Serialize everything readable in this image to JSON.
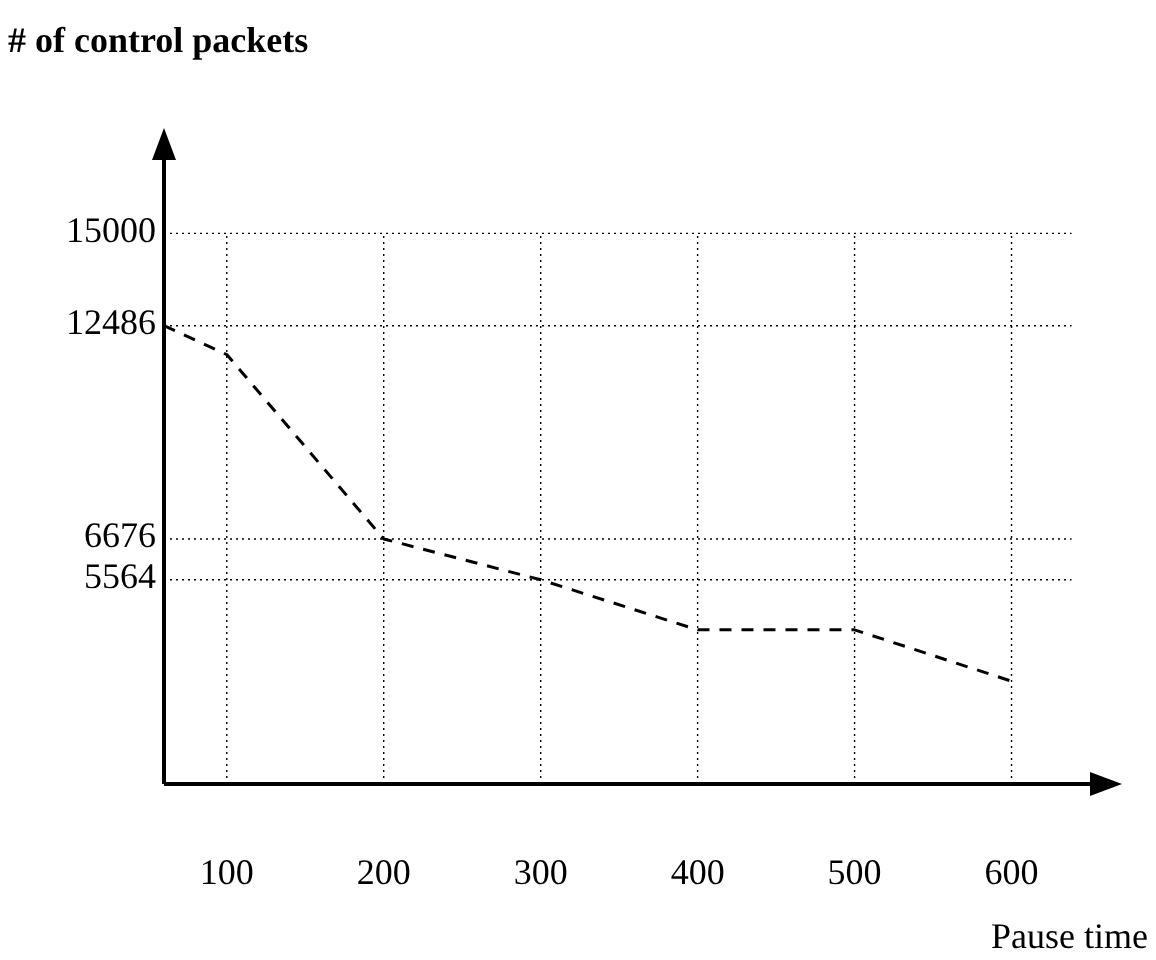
{
  "chart_data": {
    "type": "line",
    "xlabel": "Pause time",
    "ylabel": "# of control packets",
    "x": [
      60,
      100,
      200,
      300,
      400,
      500,
      600
    ],
    "series": [
      {
        "color": "#000000",
        "values": [
          12486,
          11700,
          6676,
          5564,
          4200,
          4200,
          2800
        ]
      }
    ],
    "xlim": [
      60,
      650
    ],
    "xticks": [
      100,
      200,
      300,
      400,
      500,
      600
    ],
    "ylim": [
      0,
      17000
    ],
    "yticks": [
      5564,
      6676,
      12486,
      15000
    ],
    "grid": true,
    "line_style": "dashed",
    "marker": "none"
  }
}
